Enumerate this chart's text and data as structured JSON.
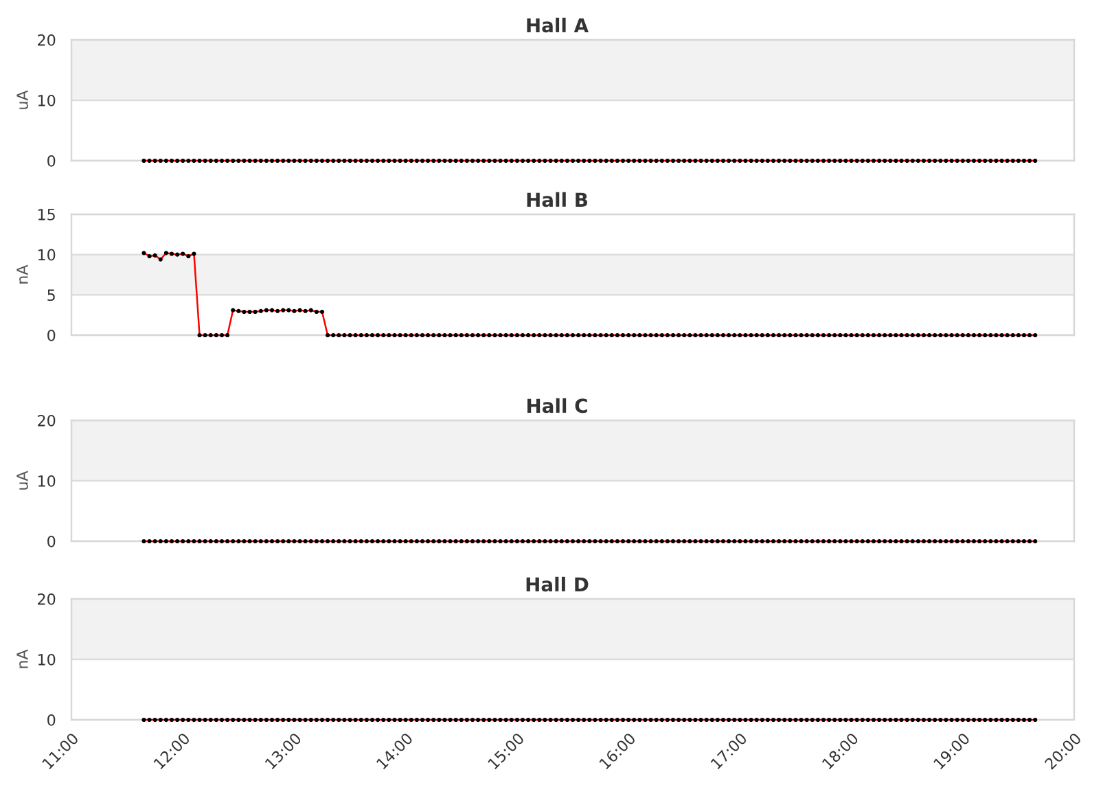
{
  "chart_data": [
    {
      "type": "line",
      "title": "Hall A",
      "ylabel": "uA",
      "color": "#ff0000",
      "marker": "circle",
      "line_style": "solid",
      "xlim": [
        11,
        20
      ],
      "ylim": [
        0,
        20
      ],
      "yticks": [
        0,
        10,
        20
      ],
      "grid": "y",
      "tick_labels": "y",
      "bands": [
        {
          "axis": "y",
          "from": 10,
          "to": 20,
          "color": "#f2f2f2"
        }
      ],
      "x": [
        11.65,
        11.7,
        11.75,
        11.8,
        11.85,
        11.9,
        11.95,
        12,
        12.05,
        12.1,
        12.15,
        12.2,
        12.25,
        12.3,
        12.35,
        12.4,
        12.45,
        12.5,
        12.55,
        12.6,
        12.65,
        12.7,
        12.75,
        12.8,
        12.85,
        12.9,
        12.95,
        13,
        13.05,
        13.1,
        13.15,
        13.2,
        13.25,
        13.3,
        13.35,
        13.4,
        13.45,
        13.5,
        13.55,
        13.6,
        13.65,
        13.7,
        13.75,
        13.8,
        13.85,
        13.9,
        13.95,
        14,
        14.05,
        14.1,
        14.15,
        14.2,
        14.25,
        14.3,
        14.35,
        14.4,
        14.45,
        14.5,
        14.55,
        14.6,
        14.65,
        14.7,
        14.75,
        14.8,
        14.85,
        14.9,
        14.95,
        15,
        15.05,
        15.1,
        15.15,
        15.2,
        15.25,
        15.3,
        15.35,
        15.4,
        15.45,
        15.5,
        15.55,
        15.6,
        15.65,
        15.7,
        15.75,
        15.8,
        15.85,
        15.9,
        15.95,
        16,
        16.05,
        16.1,
        16.15,
        16.2,
        16.25,
        16.3,
        16.35,
        16.4,
        16.45,
        16.5,
        16.55,
        16.6,
        16.65,
        16.7,
        16.75,
        16.8,
        16.85,
        16.9,
        16.95,
        17,
        17.05,
        17.1,
        17.15,
        17.2,
        17.25,
        17.3,
        17.35,
        17.4,
        17.45,
        17.5,
        17.55,
        17.6,
        17.65,
        17.7,
        17.75,
        17.8,
        17.85,
        17.9,
        17.95,
        18,
        18.05,
        18.1,
        18.15,
        18.2,
        18.25,
        18.3,
        18.35,
        18.4,
        18.45,
        18.5,
        18.55,
        18.6,
        18.65,
        18.7,
        18.75,
        18.8,
        18.85,
        18.9,
        18.95,
        19,
        19.05,
        19.1,
        19.15,
        19.2,
        19.25,
        19.3,
        19.35,
        19.4,
        19.45,
        19.5,
        19.55,
        19.6,
        19.65
      ],
      "values": [
        0,
        0,
        0,
        0,
        0,
        0,
        0,
        0,
        0,
        0,
        0,
        0,
        0,
        0,
        0,
        0,
        0,
        0,
        0,
        0,
        0,
        0,
        0,
        0,
        0,
        0,
        0,
        0,
        0,
        0,
        0,
        0,
        0,
        0,
        0,
        0,
        0,
        0,
        0,
        0,
        0,
        0,
        0,
        0,
        0,
        0,
        0,
        0,
        0,
        0,
        0,
        0,
        0,
        0,
        0,
        0,
        0,
        0,
        0,
        0,
        0,
        0,
        0,
        0,
        0,
        0,
        0,
        0,
        0,
        0,
        0,
        0,
        0,
        0,
        0,
        0,
        0,
        0,
        0,
        0,
        0,
        0,
        0,
        0,
        0,
        0,
        0,
        0,
        0,
        0,
        0,
        0,
        0,
        0,
        0,
        0,
        0,
        0,
        0,
        0,
        0,
        0,
        0,
        0,
        0,
        0,
        0,
        0,
        0,
        0,
        0,
        0,
        0,
        0,
        0,
        0,
        0,
        0,
        0,
        0,
        0,
        0,
        0,
        0,
        0,
        0,
        0,
        0,
        0,
        0,
        0,
        0,
        0,
        0,
        0,
        0,
        0,
        0,
        0,
        0,
        0,
        0,
        0,
        0,
        0,
        0,
        0,
        0,
        0,
        0,
        0,
        0,
        0,
        0,
        0,
        0,
        0,
        0,
        0,
        0,
        0
      ]
    },
    {
      "type": "line",
      "title": "Hall B",
      "ylabel": "nA",
      "color": "#ff0000",
      "marker": "circle",
      "line_style": "solid",
      "xlim": [
        11,
        20
      ],
      "ylim": [
        0,
        15
      ],
      "yticks": [
        0,
        5,
        10,
        15
      ],
      "grid": "y",
      "tick_labels": "y",
      "bands": [
        {
          "axis": "y",
          "from": 5,
          "to": 10,
          "color": "#f2f2f2"
        }
      ],
      "x": [
        11.65,
        11.7,
        11.75,
        11.8,
        11.85,
        11.9,
        11.95,
        12,
        12.05,
        12.1,
        12.15,
        12.2,
        12.25,
        12.3,
        12.35,
        12.4,
        12.45,
        12.5,
        12.55,
        12.6,
        12.65,
        12.7,
        12.75,
        12.8,
        12.85,
        12.9,
        12.95,
        13,
        13.05,
        13.1,
        13.15,
        13.2,
        13.25,
        13.3,
        13.35,
        13.4,
        13.45,
        13.5,
        13.55,
        13.6,
        13.65,
        13.7,
        13.75,
        13.8,
        13.85,
        13.9,
        13.95,
        14,
        14.05,
        14.1,
        14.15,
        14.2,
        14.25,
        14.3,
        14.35,
        14.4,
        14.45,
        14.5,
        14.55,
        14.6,
        14.65,
        14.7,
        14.75,
        14.8,
        14.85,
        14.9,
        14.95,
        15,
        15.05,
        15.1,
        15.15,
        15.2,
        15.25,
        15.3,
        15.35,
        15.4,
        15.45,
        15.5,
        15.55,
        15.6,
        15.65,
        15.7,
        15.75,
        15.8,
        15.85,
        15.9,
        15.95,
        16,
        16.05,
        16.1,
        16.15,
        16.2,
        16.25,
        16.3,
        16.35,
        16.4,
        16.45,
        16.5,
        16.55,
        16.6,
        16.65,
        16.7,
        16.75,
        16.8,
        16.85,
        16.9,
        16.95,
        17,
        17.05,
        17.1,
        17.15,
        17.2,
        17.25,
        17.3,
        17.35,
        17.4,
        17.45,
        17.5,
        17.55,
        17.6,
        17.65,
        17.7,
        17.75,
        17.8,
        17.85,
        17.9,
        17.95,
        18,
        18.05,
        18.1,
        18.15,
        18.2,
        18.25,
        18.3,
        18.35,
        18.4,
        18.45,
        18.5,
        18.55,
        18.6,
        18.65,
        18.7,
        18.75,
        18.8,
        18.85,
        18.9,
        18.95,
        19,
        19.05,
        19.1,
        19.15,
        19.2,
        19.25,
        19.3,
        19.35,
        19.4,
        19.45,
        19.5,
        19.55,
        19.6,
        19.65
      ],
      "values": [
        10.2,
        9.8,
        9.9,
        9.4,
        10.2,
        10.1,
        10,
        10.1,
        9.8,
        10.1,
        0,
        0,
        0,
        0,
        0,
        0,
        3.1,
        3,
        2.9,
        2.9,
        2.9,
        3,
        3.1,
        3.1,
        3,
        3.1,
        3.1,
        3,
        3.1,
        3,
        3.1,
        2.9,
        2.9,
        0,
        0,
        0,
        0,
        0,
        0,
        0,
        0,
        0,
        0,
        0,
        0,
        0,
        0,
        0,
        0,
        0,
        0,
        0,
        0,
        0,
        0,
        0,
        0,
        0,
        0,
        0,
        0,
        0,
        0,
        0,
        0,
        0,
        0,
        0,
        0,
        0,
        0,
        0,
        0,
        0,
        0,
        0,
        0,
        0,
        0,
        0,
        0,
        0,
        0,
        0,
        0,
        0,
        0,
        0,
        0,
        0,
        0,
        0,
        0,
        0,
        0,
        0,
        0,
        0,
        0,
        0,
        0,
        0,
        0,
        0,
        0,
        0,
        0,
        0,
        0,
        0,
        0,
        0,
        0,
        0,
        0,
        0,
        0,
        0,
        0,
        0,
        0,
        0,
        0,
        0,
        0,
        0,
        0,
        0,
        0,
        0,
        0,
        0,
        0,
        0,
        0,
        0,
        0,
        0,
        0,
        0,
        0,
        0,
        0,
        0,
        0,
        0,
        0,
        0,
        0,
        0,
        0,
        0,
        0,
        0,
        0,
        0,
        0,
        0,
        0,
        0,
        0
      ]
    },
    {
      "type": "line",
      "title": "Hall C",
      "ylabel": "uA",
      "color": "#ff0000",
      "marker": "circle",
      "line_style": "solid",
      "xlim": [
        11,
        20
      ],
      "ylim": [
        0,
        20
      ],
      "yticks": [
        0,
        10,
        20
      ],
      "grid": "y",
      "tick_labels": "y",
      "bands": [
        {
          "axis": "y",
          "from": 10,
          "to": 20,
          "color": "#f2f2f2"
        }
      ],
      "x": [
        11.65,
        11.7,
        11.75,
        11.8,
        11.85,
        11.9,
        11.95,
        12,
        12.05,
        12.1,
        12.15,
        12.2,
        12.25,
        12.3,
        12.35,
        12.4,
        12.45,
        12.5,
        12.55,
        12.6,
        12.65,
        12.7,
        12.75,
        12.8,
        12.85,
        12.9,
        12.95,
        13,
        13.05,
        13.1,
        13.15,
        13.2,
        13.25,
        13.3,
        13.35,
        13.4,
        13.45,
        13.5,
        13.55,
        13.6,
        13.65,
        13.7,
        13.75,
        13.8,
        13.85,
        13.9,
        13.95,
        14,
        14.05,
        14.1,
        14.15,
        14.2,
        14.25,
        14.3,
        14.35,
        14.4,
        14.45,
        14.5,
        14.55,
        14.6,
        14.65,
        14.7,
        14.75,
        14.8,
        14.85,
        14.9,
        14.95,
        15,
        15.05,
        15.1,
        15.15,
        15.2,
        15.25,
        15.3,
        15.35,
        15.4,
        15.45,
        15.5,
        15.55,
        15.6,
        15.65,
        15.7,
        15.75,
        15.8,
        15.85,
        15.9,
        15.95,
        16,
        16.05,
        16.1,
        16.15,
        16.2,
        16.25,
        16.3,
        16.35,
        16.4,
        16.45,
        16.5,
        16.55,
        16.6,
        16.65,
        16.7,
        16.75,
        16.8,
        16.85,
        16.9,
        16.95,
        17,
        17.05,
        17.1,
        17.15,
        17.2,
        17.25,
        17.3,
        17.35,
        17.4,
        17.45,
        17.5,
        17.55,
        17.6,
        17.65,
        17.7,
        17.75,
        17.8,
        17.85,
        17.9,
        17.95,
        18,
        18.05,
        18.1,
        18.15,
        18.2,
        18.25,
        18.3,
        18.35,
        18.4,
        18.45,
        18.5,
        18.55,
        18.6,
        18.65,
        18.7,
        18.75,
        18.8,
        18.85,
        18.9,
        18.95,
        19,
        19.05,
        19.1,
        19.15,
        19.2,
        19.25,
        19.3,
        19.35,
        19.4,
        19.45,
        19.5,
        19.55,
        19.6,
        19.65
      ],
      "values": [
        0,
        0,
        0,
        0,
        0,
        0,
        0,
        0,
        0,
        0,
        0,
        0,
        0,
        0,
        0,
        0,
        0,
        0,
        0,
        0,
        0,
        0,
        0,
        0,
        0,
        0,
        0,
        0,
        0,
        0,
        0,
        0,
        0,
        0,
        0,
        0,
        0,
        0,
        0,
        0,
        0,
        0,
        0,
        0,
        0,
        0,
        0,
        0,
        0,
        0,
        0,
        0,
        0,
        0,
        0,
        0,
        0,
        0,
        0,
        0,
        0,
        0,
        0,
        0,
        0,
        0,
        0,
        0,
        0,
        0,
        0,
        0,
        0,
        0,
        0,
        0,
        0,
        0,
        0,
        0,
        0,
        0,
        0,
        0,
        0,
        0,
        0,
        0,
        0,
        0,
        0,
        0,
        0,
        0,
        0,
        0,
        0,
        0,
        0,
        0,
        0,
        0,
        0,
        0,
        0,
        0,
        0,
        0,
        0,
        0,
        0,
        0,
        0,
        0,
        0,
        0,
        0,
        0,
        0,
        0,
        0,
        0,
        0,
        0,
        0,
        0,
        0,
        0,
        0,
        0,
        0,
        0,
        0,
        0,
        0,
        0,
        0,
        0,
        0,
        0,
        0,
        0,
        0,
        0,
        0,
        0,
        0,
        0,
        0,
        0,
        0,
        0,
        0,
        0,
        0,
        0,
        0,
        0,
        0,
        0,
        0
      ]
    },
    {
      "type": "line",
      "title": "Hall D",
      "ylabel": "nA",
      "color": "#ff0000",
      "marker": "circle",
      "line_style": "solid",
      "xlim": [
        11,
        20
      ],
      "ylim": [
        0,
        20
      ],
      "yticks": [
        0,
        10,
        20
      ],
      "grid": "y",
      "bands": [
        {
          "axis": "y",
          "from": 10,
          "to": 20,
          "color": "#f2f2f2"
        }
      ],
      "xticks": [
        {
          "value": 11,
          "label": "11:00"
        },
        {
          "value": 12,
          "label": "12:00"
        },
        {
          "value": 13,
          "label": "13:00"
        },
        {
          "value": 14,
          "label": "14:00"
        },
        {
          "value": 15,
          "label": "15:00"
        },
        {
          "value": 16,
          "label": "16:00"
        },
        {
          "value": 17,
          "label": "17:00"
        },
        {
          "value": 18,
          "label": "18:00"
        },
        {
          "value": 19,
          "label": "19:00"
        },
        {
          "value": 20,
          "label": "20:00"
        }
      ],
      "x": [
        11.65,
        11.7,
        11.75,
        11.8,
        11.85,
        11.9,
        11.95,
        12,
        12.05,
        12.1,
        12.15,
        12.2,
        12.25,
        12.3,
        12.35,
        12.4,
        12.45,
        12.5,
        12.55,
        12.6,
        12.65,
        12.7,
        12.75,
        12.8,
        12.85,
        12.9,
        12.95,
        13,
        13.05,
        13.1,
        13.15,
        13.2,
        13.25,
        13.3,
        13.35,
        13.4,
        13.45,
        13.5,
        13.55,
        13.6,
        13.65,
        13.7,
        13.75,
        13.8,
        13.85,
        13.9,
        13.95,
        14,
        14.05,
        14.1,
        14.15,
        14.2,
        14.25,
        14.3,
        14.35,
        14.4,
        14.45,
        14.5,
        14.55,
        14.6,
        14.65,
        14.7,
        14.75,
        14.8,
        14.85,
        14.9,
        14.95,
        15,
        15.05,
        15.1,
        15.15,
        15.2,
        15.25,
        15.3,
        15.35,
        15.4,
        15.45,
        15.5,
        15.55,
        15.6,
        15.65,
        15.7,
        15.75,
        15.8,
        15.85,
        15.9,
        15.95,
        16,
        16.05,
        16.1,
        16.15,
        16.2,
        16.25,
        16.3,
        16.35,
        16.4,
        16.45,
        16.5,
        16.55,
        16.6,
        16.65,
        16.7,
        16.75,
        16.8,
        16.85,
        16.9,
        16.95,
        17,
        17.05,
        17.1,
        17.15,
        17.2,
        17.25,
        17.3,
        17.35,
        17.4,
        17.45,
        17.5,
        17.55,
        17.6,
        17.65,
        17.7,
        17.75,
        17.8,
        17.85,
        17.9,
        17.95,
        18,
        18.05,
        18.1,
        18.15,
        18.2,
        18.25,
        18.3,
        18.35,
        18.4,
        18.45,
        18.5,
        18.55,
        18.6,
        18.65,
        18.7,
        18.75,
        18.8,
        18.85,
        18.9,
        18.95,
        19,
        19.05,
        19.1,
        19.15,
        19.2,
        19.25,
        19.3,
        19.35,
        19.4,
        19.45,
        19.5,
        19.55,
        19.6,
        19.65
      ],
      "values": [
        0,
        0,
        0,
        0,
        0,
        0,
        0,
        0,
        0,
        0,
        0,
        0,
        0,
        0,
        0,
        0,
        0,
        0,
        0,
        0,
        0,
        0,
        0,
        0,
        0,
        0,
        0,
        0,
        0,
        0,
        0,
        0,
        0,
        0,
        0,
        0,
        0,
        0,
        0,
        0,
        0,
        0,
        0,
        0,
        0,
        0,
        0,
        0,
        0,
        0,
        0,
        0,
        0,
        0,
        0,
        0,
        0,
        0,
        0,
        0,
        0,
        0,
        0,
        0,
        0,
        0,
        0,
        0,
        0,
        0,
        0,
        0,
        0,
        0,
        0,
        0,
        0,
        0,
        0,
        0,
        0,
        0,
        0,
        0,
        0,
        0,
        0,
        0,
        0,
        0,
        0,
        0,
        0,
        0,
        0,
        0,
        0,
        0,
        0,
        0,
        0,
        0,
        0,
        0,
        0,
        0,
        0,
        0,
        0,
        0,
        0,
        0,
        0,
        0,
        0,
        0,
        0,
        0,
        0,
        0,
        0,
        0,
        0,
        0,
        0,
        0,
        0,
        0,
        0,
        0,
        0,
        0,
        0,
        0,
        0,
        0,
        0,
        0,
        0,
        0,
        0,
        0,
        0,
        0,
        0,
        0,
        0,
        0,
        0,
        0,
        0,
        0,
        0,
        0,
        0,
        0,
        0,
        0,
        0,
        0,
        0
      ]
    }
  ]
}
